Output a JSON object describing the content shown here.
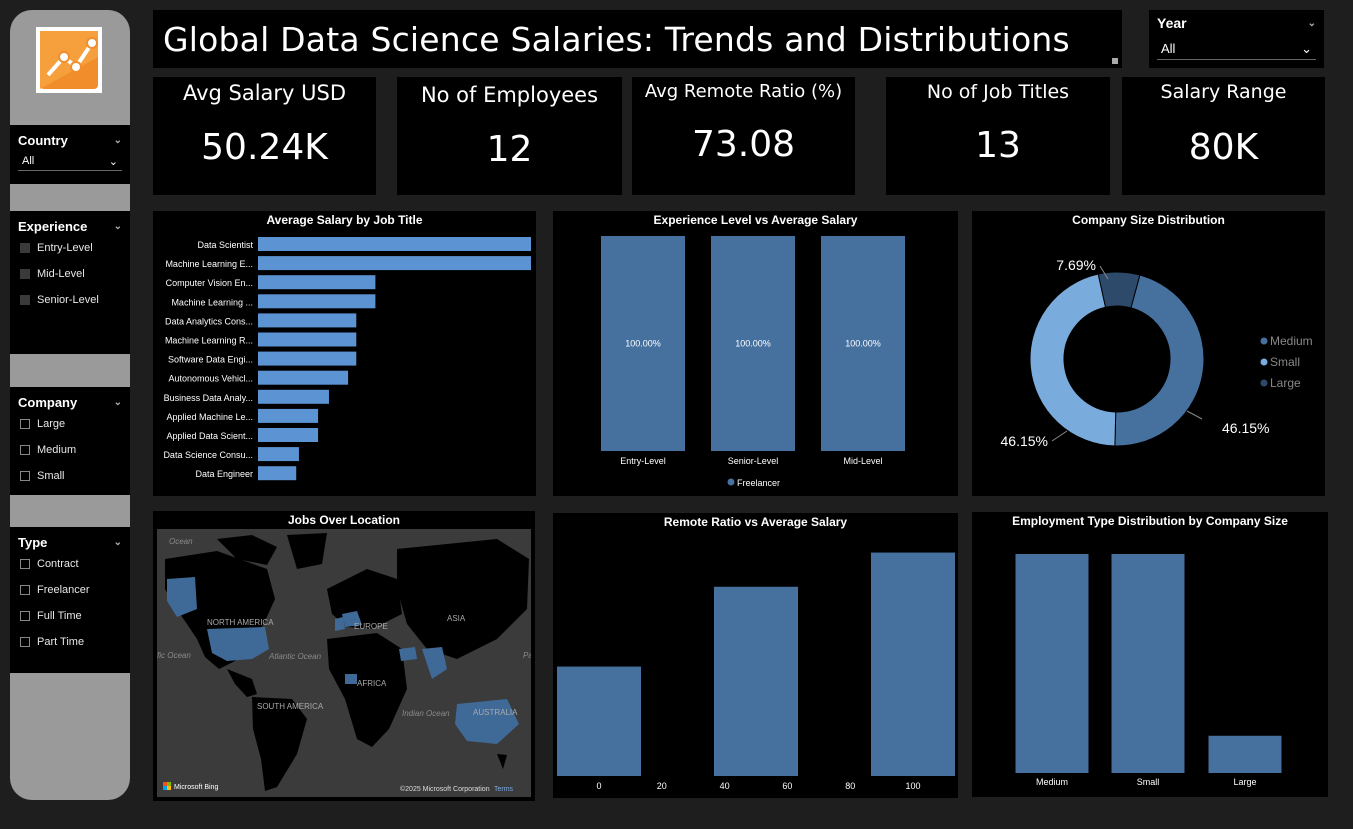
{
  "header": {
    "title": "Global Data Science Salaries: Trends and Distributions"
  },
  "year_slicer": {
    "label": "Year",
    "value": "All"
  },
  "sidebar": {
    "country": {
      "label": "Country",
      "value": "All"
    },
    "experience": {
      "label": "Experience",
      "options": [
        "Entry-Level",
        "Mid-Level",
        "Senior-Level"
      ]
    },
    "company": {
      "label": "Company",
      "options": [
        "Large",
        "Medium",
        "Small"
      ]
    },
    "type": {
      "label": "Type",
      "options": [
        "Contract",
        "Freelancer",
        "Full Time",
        "Part Time"
      ]
    }
  },
  "kpis": [
    {
      "label": "Avg Salary USD",
      "value": "50.24K"
    },
    {
      "label": "No of Employees",
      "value": "12"
    },
    {
      "label": "Avg Remote Ratio (%)",
      "value": "73.08"
    },
    {
      "label": "No of Job Titles",
      "value": "13"
    },
    {
      "label": "Salary Range",
      "value": "80K"
    }
  ],
  "colors": {
    "bar": "#5b93d3",
    "bar_dark": "#46719f",
    "donut_medium": "#46719f",
    "donut_small": "#7aabdd",
    "donut_large": "#2e4a6b"
  },
  "chart_data": [
    {
      "type": "bar",
      "orientation": "horizontal",
      "title": "Average Salary by Job Title",
      "categories": [
        "Data Scientist",
        "Machine Learning E...",
        "Computer Vision En...",
        "Machine Learning ...",
        "Data Analytics Cons...",
        "Machine Learning R...",
        "Software Data Engi...",
        "Autonomous Vehicl...",
        "Business Data Analy...",
        "Applied Machine Le...",
        "Applied Data Scient...",
        "Data Science Consu...",
        "Data Engineer"
      ],
      "values": [
        100,
        100,
        43,
        43,
        36,
        36,
        36,
        33,
        26,
        22,
        22,
        15,
        14
      ]
    },
    {
      "type": "bar",
      "title": "Experience Level vs Average Salary",
      "categories": [
        "Entry-Level",
        "Senior-Level",
        "Mid-Level"
      ],
      "series": [
        {
          "name": "Freelancer",
          "values": [
            100,
            100,
            100
          ],
          "labels": [
            "100.00%",
            "100.00%",
            "100.00%"
          ]
        }
      ]
    },
    {
      "type": "pie",
      "title": "Company Size Distribution",
      "categories": [
        "Medium",
        "Small",
        "Large"
      ],
      "values": [
        46.15,
        46.15,
        7.69
      ],
      "labels": [
        "46.15%",
        "46.15%",
        "7.69%"
      ]
    },
    {
      "type": "bar",
      "title": "Remote Ratio vs Average Salary",
      "x": [
        0,
        50,
        100
      ],
      "values": [
        48,
        83,
        98
      ],
      "ticks": [
        "0",
        "20",
        "40",
        "60",
        "80",
        "100"
      ]
    },
    {
      "type": "bar",
      "title": "Employment Type Distribution by Company Size",
      "categories": [
        "Medium",
        "Small",
        "Large"
      ],
      "values": [
        100,
        100,
        17
      ]
    }
  ],
  "map": {
    "title": "Jobs Over Location",
    "labels": [
      "Ocean",
      "NORTH AMERICA",
      "EUROPE",
      "ASIA",
      "Atlantic Ocean",
      "AFRICA",
      "SOUTH AMERICA",
      "Indian Ocean",
      "AUSTRALIA",
      "fic Ocean",
      "Pa"
    ],
    "attribution": "Microsoft Bing",
    "copyright": "©2025 Microsoft Corporation",
    "terms": "Terms"
  }
}
